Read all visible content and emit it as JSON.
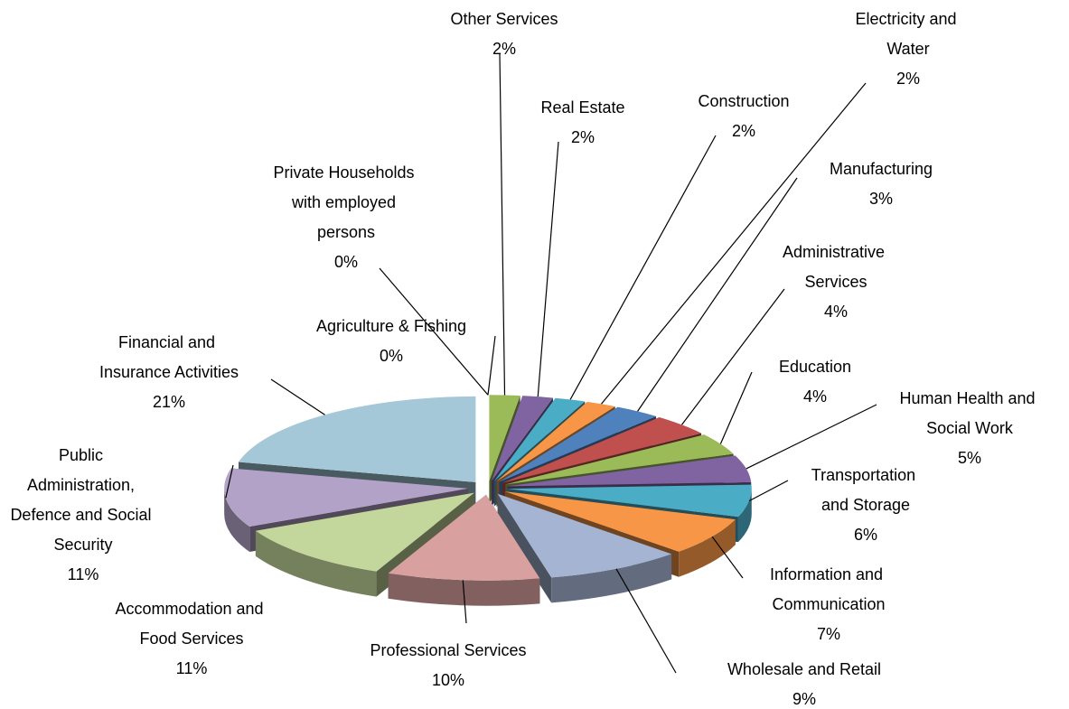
{
  "chart_data": {
    "type": "pie3d",
    "categories": [
      "Agriculture & Fishing",
      "Private Households with employed persons",
      "Other Services",
      "Real Estate",
      "Construction",
      "Electricity and Water",
      "Manufacturing",
      "Administrative Services",
      "Education",
      "Human Health and Social Work",
      "Transportation and Storage",
      "Information and Communication",
      "Wholesale and Retail",
      "Professional Services",
      "Accommodation and Food Services",
      "Public Administration, Defence and Social Security",
      "Financial and Insurance Activities"
    ],
    "values": [
      0,
      0,
      2,
      2,
      2,
      2,
      3,
      4,
      4,
      5,
      6,
      7,
      9,
      10,
      11,
      11,
      21
    ],
    "value_labels": [
      "0%",
      "0%",
      "2%",
      "2%",
      "2%",
      "2%",
      "3%",
      "4%",
      "4%",
      "5%",
      "6%",
      "7%",
      "9%",
      "10%",
      "11%",
      "11%",
      "21%"
    ],
    "colors": [
      "#c0504d",
      "#9bbb59",
      "#9bbb59",
      "#8064a2",
      "#4bacc6",
      "#f79646",
      "#4f81bd",
      "#c0504d",
      "#9bbb59",
      "#8064a2",
      "#4bacc6",
      "#f79646",
      "#a5b4d3",
      "#d9a0a0",
      "#c3d69b",
      "#b3a2c7",
      "#a5c8d8"
    ]
  }
}
